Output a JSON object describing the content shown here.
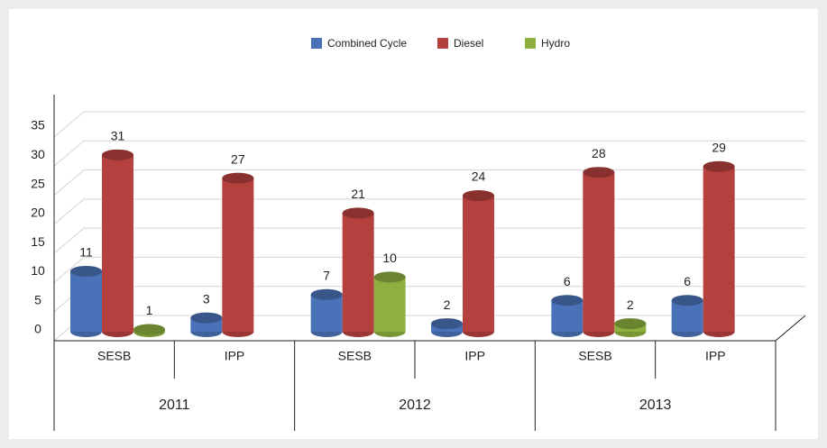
{
  "chart_data": {
    "type": "bar",
    "categories": [
      "SESB",
      "IPP",
      "SESB",
      "IPP",
      "SESB",
      "IPP"
    ],
    "group_labels": [
      "2011",
      "2012",
      "2013"
    ],
    "series": [
      {
        "name": "Combined Cycle",
        "color": "#4a72b8",
        "values": [
          11,
          3,
          7,
          2,
          6,
          6
        ]
      },
      {
        "name": "Diesel",
        "color": "#b5413f",
        "values": [
          31,
          27,
          21,
          24,
          28,
          29
        ]
      },
      {
        "name": "Hydro",
        "color": "#8db040",
        "values": [
          1,
          null,
          10,
          null,
          2,
          null
        ]
      }
    ],
    "ylim": [
      0,
      35
    ],
    "yticks": [
      0,
      5,
      10,
      15,
      20,
      25,
      30,
      35
    ],
    "grid": true,
    "legend": "top"
  }
}
